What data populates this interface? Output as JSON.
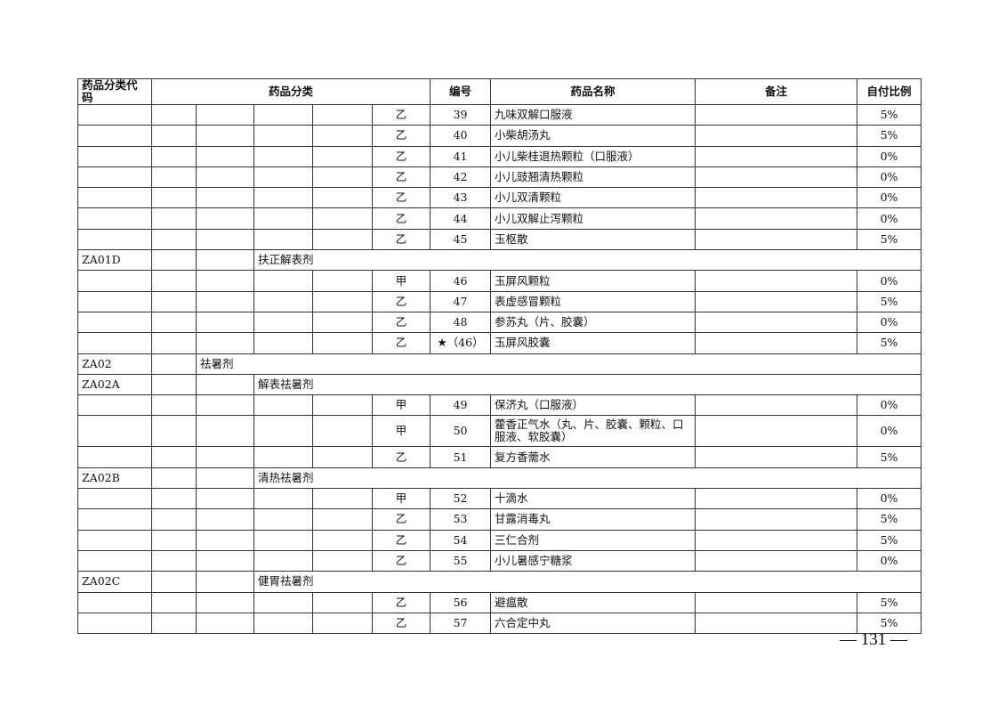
{
  "header": [
    "药品分类代码",
    "药品分类",
    "编号",
    "药品名称",
    "备注",
    "自付比例"
  ],
  "rows": [
    {
      "type": "item",
      "grade": "乙",
      "no": "39",
      "name": "九味双解口服液",
      "note": "",
      "ratio": "5%"
    },
    {
      "type": "item",
      "grade": "乙",
      "no": "40",
      "name": "小柴胡汤丸",
      "note": "",
      "ratio": "5%"
    },
    {
      "type": "item",
      "grade": "乙",
      "no": "41",
      "name": "小儿柴桂退热颗粒（口服液）",
      "note": "",
      "ratio": "0%"
    },
    {
      "type": "item",
      "grade": "乙",
      "no": "42",
      "name": "小儿豉翘清热颗粒",
      "note": "",
      "ratio": "0%"
    },
    {
      "type": "item",
      "grade": "乙",
      "no": "43",
      "name": "小儿双清颗粒",
      "note": "",
      "ratio": "0%"
    },
    {
      "type": "item",
      "grade": "乙",
      "no": "44",
      "name": "小儿双解止泻颗粒",
      "note": "",
      "ratio": "0%"
    },
    {
      "type": "item",
      "grade": "乙",
      "no": "45",
      "name": "玉枢散",
      "note": "",
      "ratio": "5%"
    },
    {
      "type": "sub",
      "code": "ZA01D",
      "label": "扶正解表剂"
    },
    {
      "type": "item",
      "grade": "甲",
      "no": "46",
      "name": "玉屏风颗粒",
      "note": "",
      "ratio": "0%"
    },
    {
      "type": "item",
      "grade": "乙",
      "no": "47",
      "name": "表虚感冒颗粒",
      "note": "",
      "ratio": "5%"
    },
    {
      "type": "item",
      "grade": "乙",
      "no": "48",
      "name": "参苏丸（片、胶囊）",
      "note": "",
      "ratio": "0%"
    },
    {
      "type": "item",
      "grade": "乙",
      "no": "★（46）",
      "name": "玉屏风胶囊",
      "note": "",
      "ratio": "5%"
    },
    {
      "type": "cat",
      "code": "ZA02",
      "label": "祛暑剂"
    },
    {
      "type": "sub",
      "code": "ZA02A",
      "label": "解表祛暑剂"
    },
    {
      "type": "item",
      "grade": "甲",
      "no": "49",
      "name": "保济丸（口服液）",
      "note": "",
      "ratio": "0%"
    },
    {
      "type": "item",
      "grade": "甲",
      "no": "50",
      "name": "藿香正气水（丸、片、胶囊、颗粒、口服液、软胶囊）",
      "note": "",
      "ratio": "0%",
      "tall": true
    },
    {
      "type": "item",
      "grade": "乙",
      "no": "51",
      "name": "复方香薷水",
      "note": "",
      "ratio": "5%"
    },
    {
      "type": "sub",
      "code": "ZA02B",
      "label": "清热祛暑剂"
    },
    {
      "type": "item",
      "grade": "甲",
      "no": "52",
      "name": "十滴水",
      "note": "",
      "ratio": "0%"
    },
    {
      "type": "item",
      "grade": "乙",
      "no": "53",
      "name": "甘露消毒丸",
      "note": "",
      "ratio": "5%"
    },
    {
      "type": "item",
      "grade": "乙",
      "no": "54",
      "name": "三仁合剂",
      "note": "",
      "ratio": "5%"
    },
    {
      "type": "item",
      "grade": "乙",
      "no": "55",
      "name": "小儿暑感宁糖浆",
      "note": "",
      "ratio": "0%"
    },
    {
      "type": "sub",
      "code": "ZA02C",
      "label": "健胃祛暑剂"
    },
    {
      "type": "item",
      "grade": "乙",
      "no": "56",
      "name": "避瘟散",
      "note": "",
      "ratio": "5%"
    },
    {
      "type": "item",
      "grade": "乙",
      "no": "57",
      "name": "六合定中丸",
      "note": "",
      "ratio": "5%"
    }
  ],
  "page_number": "— 131 —"
}
